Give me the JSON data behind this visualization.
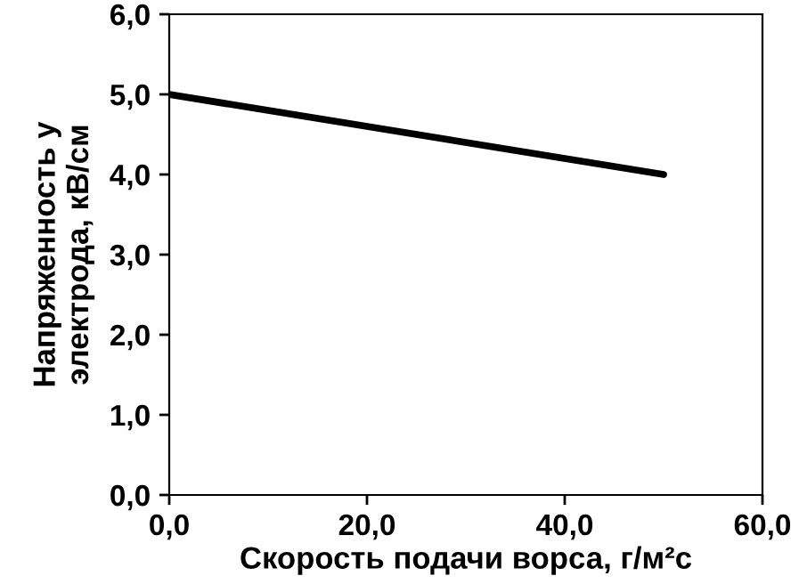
{
  "chart_data": {
    "type": "line",
    "xlabel": "Скорость подачи ворса, г/м²с",
    "ylabel": "Напряженность у\nэлектрода, кВ/см",
    "x": [
      0,
      50
    ],
    "series": [
      {
        "color": "#000000",
        "values": [
          5.0,
          4.0
        ]
      }
    ],
    "xlim": [
      0,
      60
    ],
    "xticks": [
      {
        "value": 0,
        "label": "0,0"
      },
      {
        "value": 20,
        "label": "20,0"
      },
      {
        "value": 40,
        "label": "40,0"
      },
      {
        "value": 60,
        "label": "60,0"
      }
    ],
    "ylim": [
      0,
      6
    ],
    "yticks": [
      {
        "value": 0,
        "label": "0,0"
      },
      {
        "value": 1,
        "label": "1,0"
      },
      {
        "value": 2,
        "label": "2,0"
      },
      {
        "value": 3,
        "label": "3,0"
      },
      {
        "value": 4,
        "label": "4,0"
      },
      {
        "value": 5,
        "label": "5,0"
      },
      {
        "value": 6,
        "label": "6,0"
      }
    ],
    "grid": false,
    "marker": "none",
    "line_style": "solid"
  }
}
